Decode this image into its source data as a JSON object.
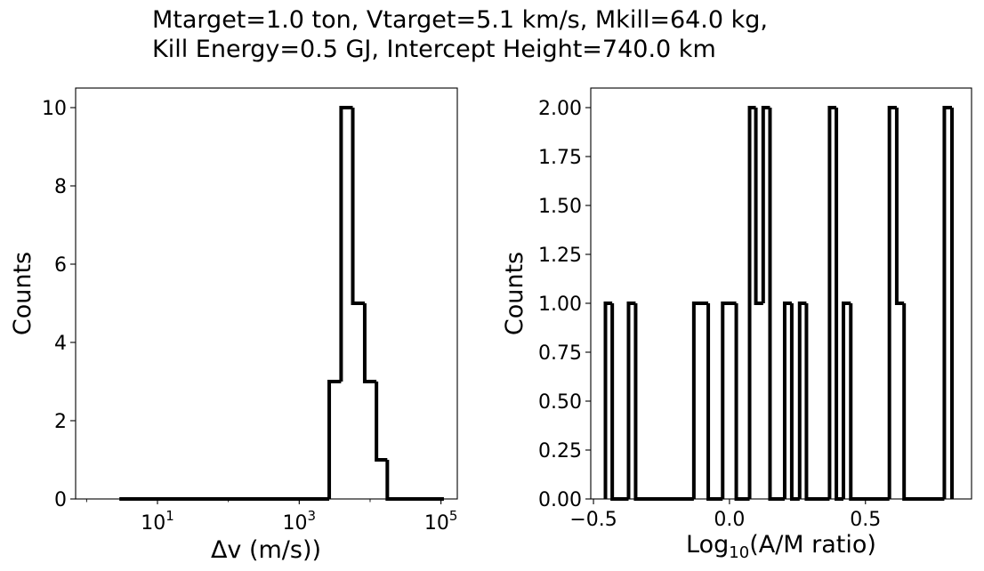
{
  "figure": {
    "title_lines": [
      "Mtarget=1.0 ton, Vtarget=5.1 km/s, Mkill=64.0 kg,",
      "Kill Energy=0.5 GJ, Intercept Height=740.0 km"
    ]
  },
  "chart_data": [
    {
      "type": "histogram",
      "style": "step",
      "color": "#000000",
      "xlabel": "Δv (m/s))",
      "ylabel": "Counts",
      "xscale": "log",
      "xlim": [
        0.7,
        170000
      ],
      "ylim": [
        0,
        10.5
      ],
      "xticks": [
        {
          "value": 10,
          "base": "10",
          "exp": "1"
        },
        {
          "value": 1000,
          "base": "10",
          "exp": "3"
        },
        {
          "value": 100000,
          "base": "10",
          "exp": "5"
        }
      ],
      "yticks": [
        0,
        2,
        4,
        6,
        8,
        10
      ],
      "ytick_labels": [
        "0",
        "2",
        "4",
        "6",
        "8",
        "10"
      ],
      "grid": false,
      "bins": [
        {
          "x0": 2.9,
          "x1": 2650,
          "count": 0
        },
        {
          "x0": 2650,
          "x1": 3900,
          "count": 3
        },
        {
          "x0": 3900,
          "x1": 5700,
          "count": 10
        },
        {
          "x0": 5700,
          "x1": 8400,
          "count": 5
        },
        {
          "x0": 8400,
          "x1": 12300,
          "count": 3
        },
        {
          "x0": 12300,
          "x1": 17500,
          "count": 1
        },
        {
          "x0": 17500,
          "x1": 110000,
          "count": 0
        }
      ]
    },
    {
      "type": "histogram",
      "style": "step",
      "color": "#000000",
      "xlabel_base": "Log",
      "xlabel_sub": "10",
      "xlabel_rest": "(A/M ratio)",
      "ylabel": "Counts",
      "xscale": "linear",
      "xlim": [
        -0.51,
        0.89
      ],
      "ylim": [
        0,
        2.1
      ],
      "xticks": [
        -0.5,
        0.0,
        0.5
      ],
      "xtick_labels": [
        "−0.5",
        "0.0",
        "0.5"
      ],
      "yticks": [
        0,
        0.25,
        0.5,
        0.75,
        1.0,
        1.25,
        1.5,
        1.75,
        2.0
      ],
      "ytick_labels": [
        "0.00",
        "0.25",
        "0.50",
        "0.75",
        "1.00",
        "1.25",
        "1.50",
        "1.75",
        "2.00"
      ],
      "grid": false,
      "bins": [
        {
          "x0": -0.456,
          "x1": -0.431,
          "count": 1
        },
        {
          "x0": -0.431,
          "x1": -0.371,
          "count": 0
        },
        {
          "x0": -0.371,
          "x1": -0.345,
          "count": 1
        },
        {
          "x0": -0.345,
          "x1": -0.131,
          "count": 0
        },
        {
          "x0": -0.131,
          "x1": -0.078,
          "count": 1
        },
        {
          "x0": -0.078,
          "x1": -0.025,
          "count": 0
        },
        {
          "x0": -0.025,
          "x1": 0.025,
          "count": 1
        },
        {
          "x0": 0.025,
          "x1": 0.074,
          "count": 0
        },
        {
          "x0": 0.074,
          "x1": 0.097,
          "count": 2
        },
        {
          "x0": 0.097,
          "x1": 0.124,
          "count": 1
        },
        {
          "x0": 0.124,
          "x1": 0.149,
          "count": 2
        },
        {
          "x0": 0.149,
          "x1": 0.203,
          "count": 0
        },
        {
          "x0": 0.203,
          "x1": 0.229,
          "count": 1
        },
        {
          "x0": 0.229,
          "x1": 0.258,
          "count": 0
        },
        {
          "x0": 0.258,
          "x1": 0.283,
          "count": 1
        },
        {
          "x0": 0.283,
          "x1": 0.368,
          "count": 0
        },
        {
          "x0": 0.368,
          "x1": 0.393,
          "count": 2
        },
        {
          "x0": 0.393,
          "x1": 0.419,
          "count": 0
        },
        {
          "x0": 0.419,
          "x1": 0.446,
          "count": 1
        },
        {
          "x0": 0.446,
          "x1": 0.588,
          "count": 0
        },
        {
          "x0": 0.588,
          "x1": 0.615,
          "count": 2
        },
        {
          "x0": 0.615,
          "x1": 0.642,
          "count": 1
        },
        {
          "x0": 0.642,
          "x1": 0.79,
          "count": 0
        },
        {
          "x0": 0.79,
          "x1": 0.818,
          "count": 2
        }
      ]
    }
  ]
}
